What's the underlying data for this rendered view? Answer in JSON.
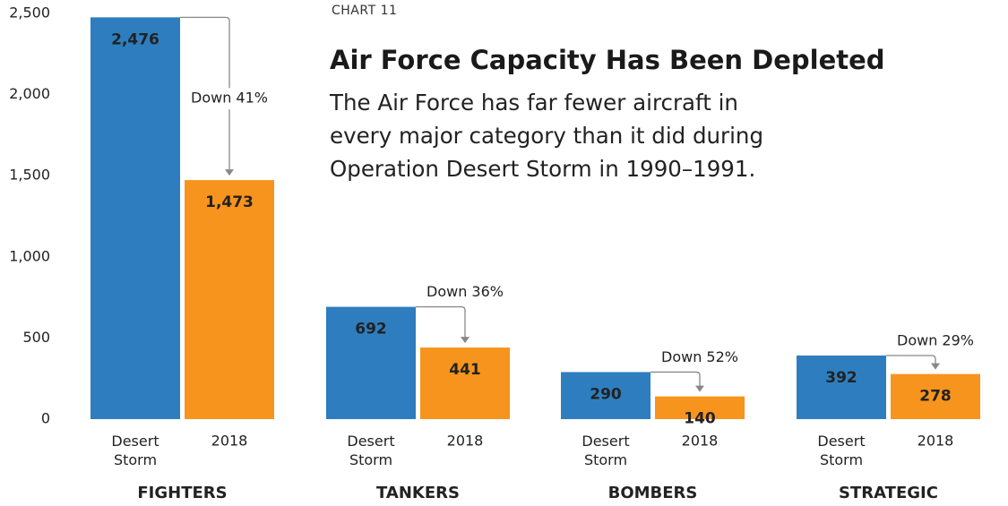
{
  "chart_data": {
    "type": "bar",
    "kicker": "CHART 11",
    "title": "Air Force Capacity Has Been Depleted",
    "subtitle": "The Air Force has far fewer aircraft in every major category than it did during Operation Desert Storm in 1990–1991.",
    "categories": [
      "FIGHTERS",
      "TANKERS",
      "BOMBERS",
      "STRATEGIC"
    ],
    "series": [
      {
        "name": "Desert Storm",
        "color": "#2e7ebf",
        "values": [
          2476,
          692,
          290,
          392
        ],
        "value_labels": [
          "2,476",
          "692",
          "290",
          "392"
        ]
      },
      {
        "name": "2018",
        "color": "#f7941d",
        "values": [
          1473,
          441,
          140,
          278
        ],
        "value_labels": [
          "1,473",
          "441",
          "140",
          "278"
        ]
      }
    ],
    "annotations": [
      "Down 41%",
      "Down 36%",
      "Down 52%",
      "Down 29%"
    ],
    "ylim": [
      0,
      2500
    ],
    "yticks": [
      0,
      500,
      {
        "value": 1000,
        "label": "1,000"
      },
      {
        "value": 1500,
        "label": "1,500"
      },
      {
        "value": 2000,
        "label": "2,000"
      },
      {
        "value": 2500,
        "label": "2,500"
      }
    ]
  }
}
